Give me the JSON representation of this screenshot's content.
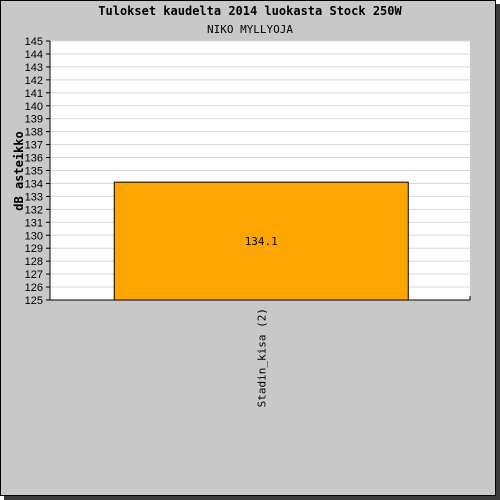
{
  "chart_data": {
    "type": "bar",
    "title": "Tulokset kaudelta 2014 luokasta Stock 250W",
    "subtitle": "NIKO MYLLYOJA",
    "ylabel": "dB asteikko",
    "xlabel": "",
    "categories": [
      "Stadin_kisa (2)"
    ],
    "values": [
      134.1
    ],
    "value_labels": [
      "134.1"
    ],
    "ylim": [
      125,
      145
    ],
    "yticks": [
      "125",
      "126",
      "127",
      "128",
      "129",
      "130",
      "131",
      "132",
      "133",
      "134",
      "135",
      "136",
      "137",
      "138",
      "139",
      "140",
      "141",
      "142",
      "143",
      "144",
      "145"
    ],
    "grid": true,
    "legend": "none",
    "colors": {
      "bar": "#ffa500",
      "frame_background": "#c8c8c8",
      "plot_background": "#ffffff",
      "grid": "#d8d8d8"
    }
  }
}
